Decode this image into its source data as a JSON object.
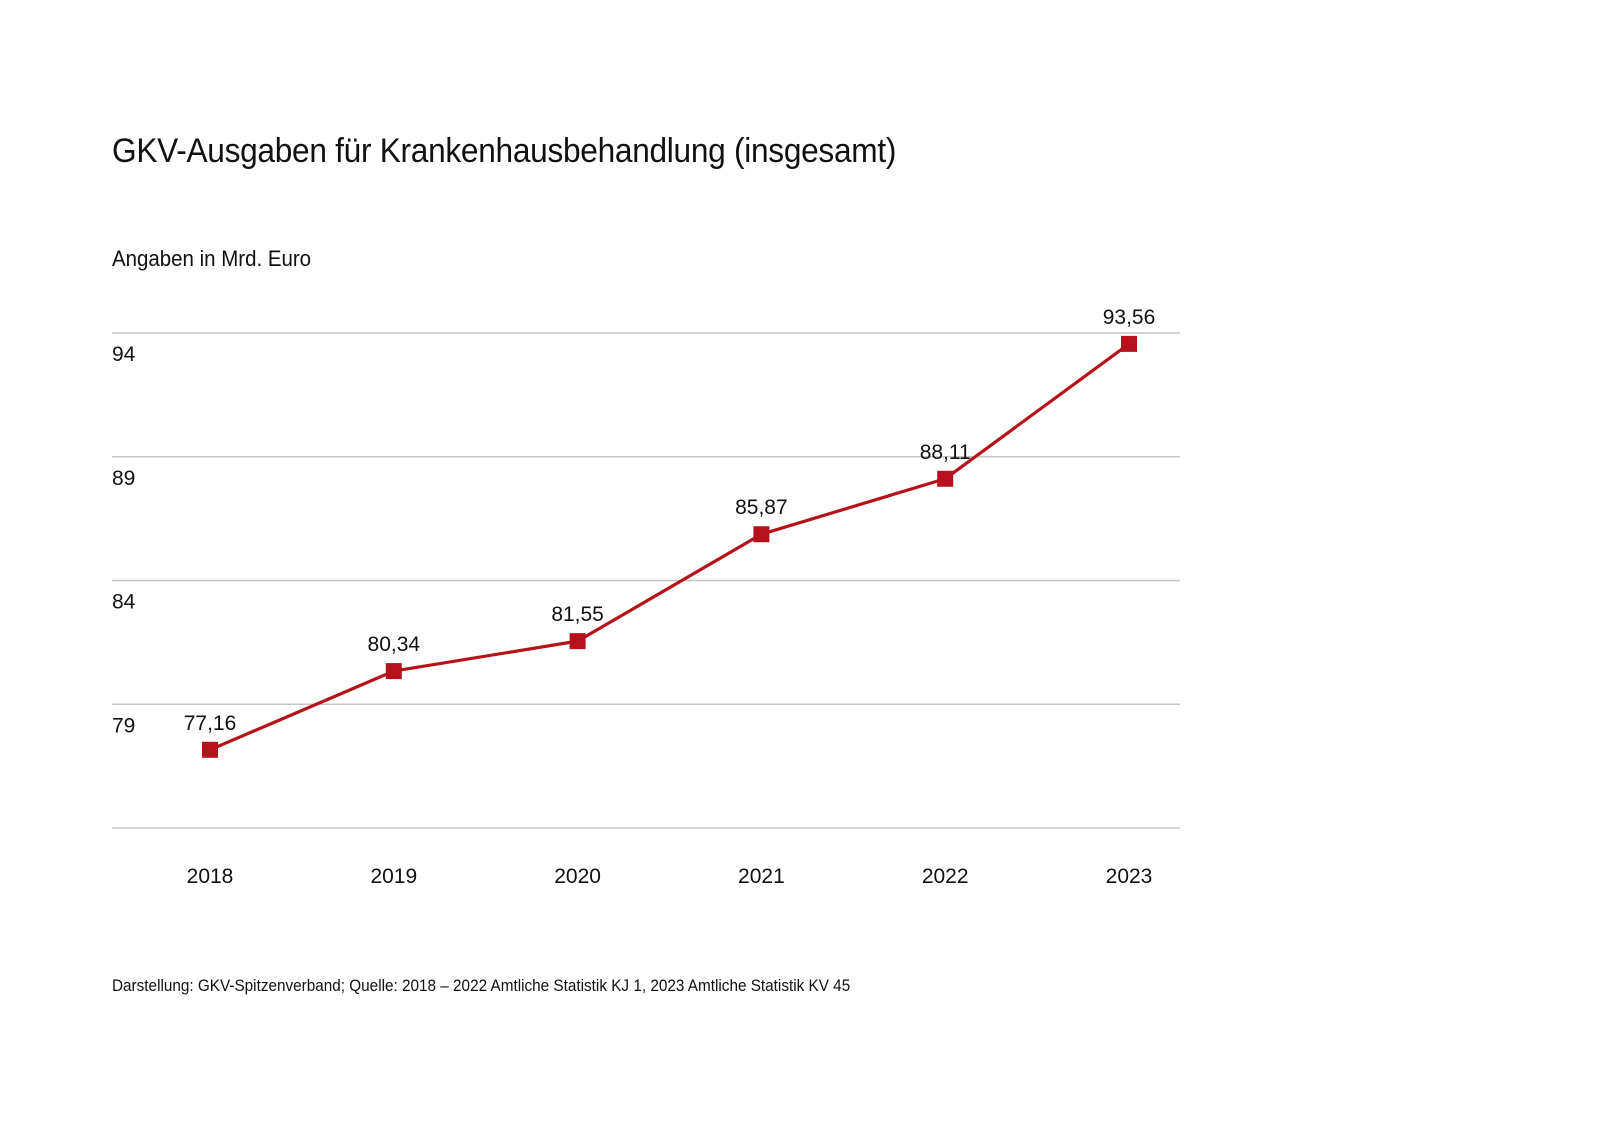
{
  "chart_data": {
    "type": "line",
    "title": "GKV-Ausgaben für Krankenhausbehandlung (insgesamt)",
    "subtitle": "Angaben in Mrd. Euro",
    "xlabel": "",
    "ylabel": "",
    "categories": [
      "2018",
      "2019",
      "2020",
      "2021",
      "2022",
      "2023"
    ],
    "series": [
      {
        "name": "GKV-Ausgaben für Krankenhausbehandlung",
        "values": [
          77.16,
          80.34,
          81.55,
          85.87,
          88.11,
          93.56
        ],
        "data_labels": [
          "77,16",
          "80,34",
          "81,55",
          "85,87",
          "88,11",
          "93,56"
        ],
        "color": "#b5121b",
        "marker": "square"
      }
    ],
    "ylim": [
      74,
      94
    ],
    "yticks": [
      94,
      89,
      84,
      79
    ],
    "ytick_labels": [
      "94",
      "89",
      "84",
      "79"
    ],
    "grid": true,
    "legend": "none",
    "footer": "Darstellung: GKV-Spitzenverband; Quelle: 2018 – 2022 Amtliche Statistik KJ 1, 2023 Amtliche Statistik KV 45"
  }
}
